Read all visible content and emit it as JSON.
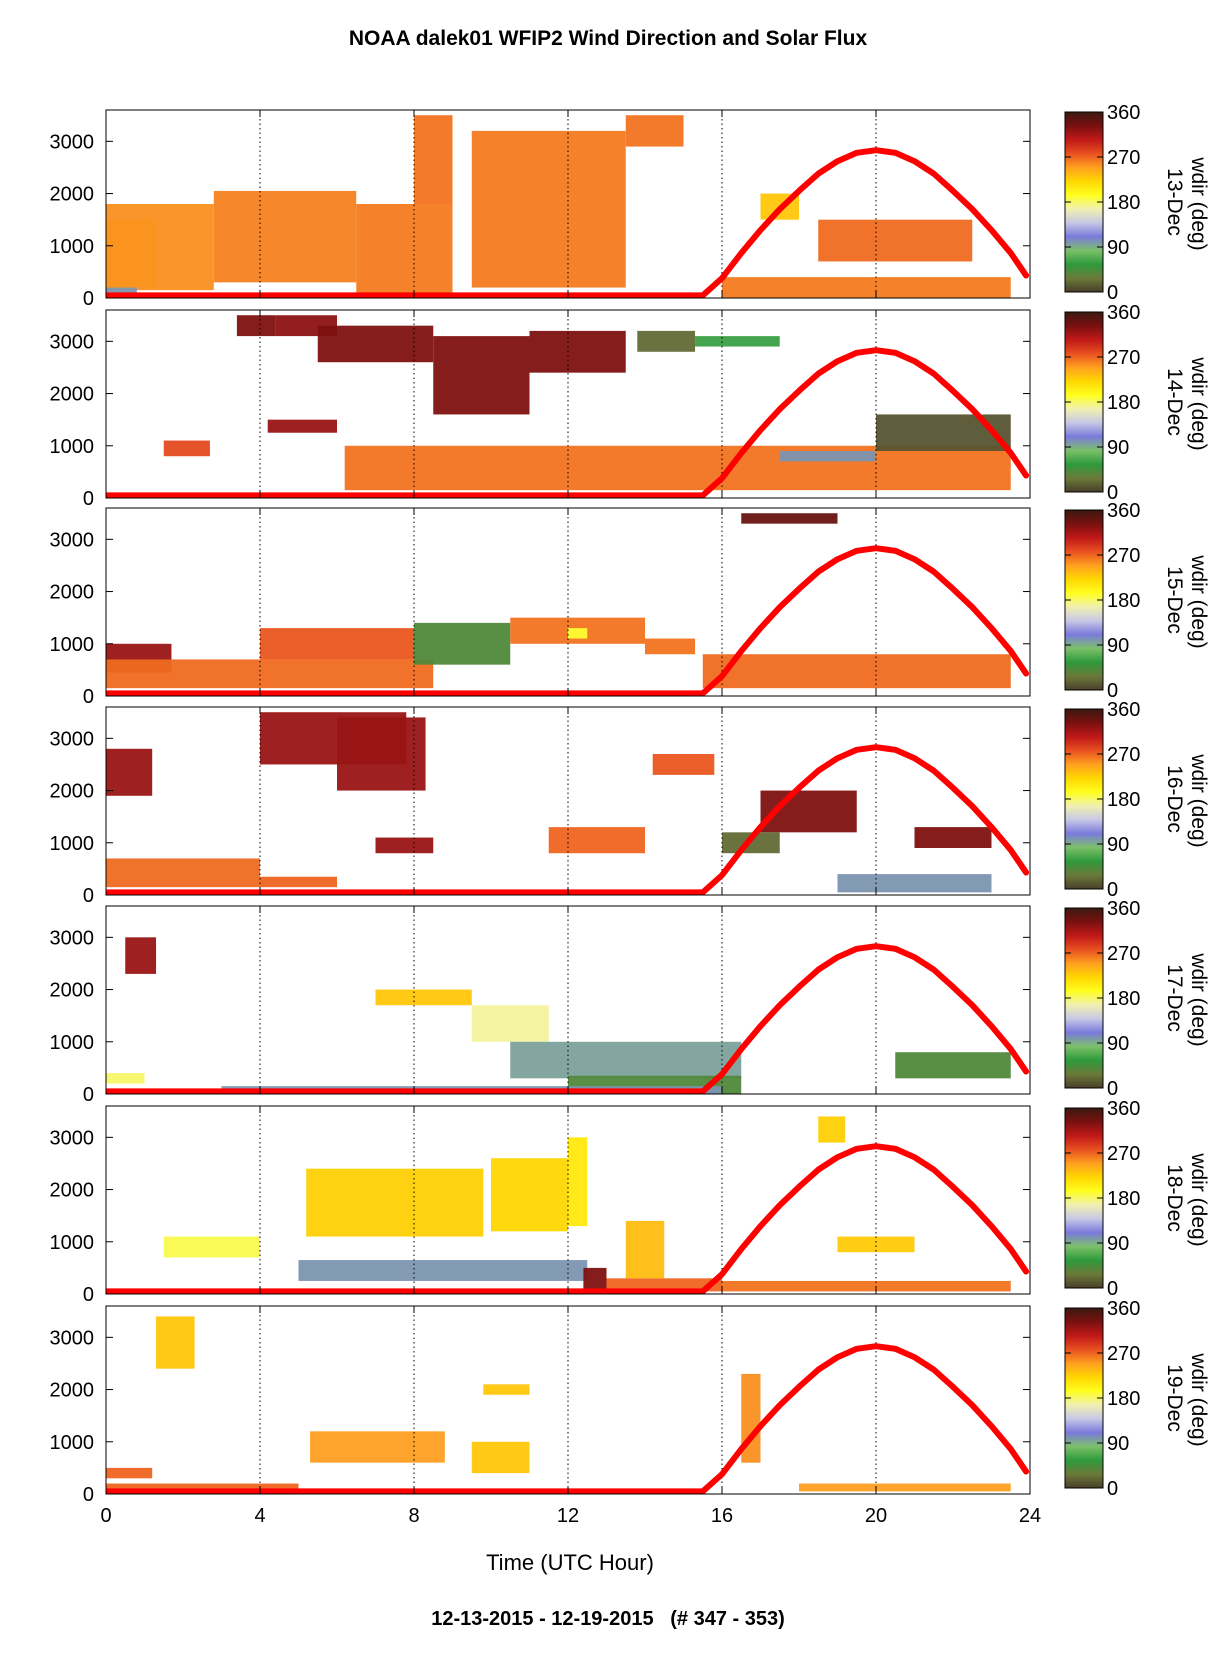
{
  "title": "NOAA dalek01 WFIP2 Wind Direction and Solar Flux",
  "footer": "12-13-2015 - 12-19-2015   (# 347 - 353)",
  "chart_data": {
    "type": "heatmap",
    "xlabel": "Time (UTC Hour)",
    "xlim": [
      0,
      24
    ],
    "x_ticks": [
      "0",
      "4",
      "8",
      "12",
      "16",
      "20",
      "24"
    ],
    "x_tick_values": [
      0,
      4,
      8,
      12,
      16,
      20,
      24
    ],
    "ylim": [
      0,
      3600
    ],
    "y_ticks": [
      "0",
      "1000",
      "2000",
      "3000"
    ],
    "y_tick_values": [
      0,
      1000,
      2000,
      3000
    ],
    "vertical_gridlines": "dotted at 4, 8, 12, 16, 20",
    "colorbar": {
      "label": "wdir (deg)",
      "ticks": [
        "0",
        "90",
        "180",
        "270",
        "360"
      ],
      "tick_values": [
        0,
        90,
        180,
        270,
        360
      ],
      "colors": [
        "#4a3f2a",
        "#6b7a3a",
        "#2e9a3c",
        "#7dc06a",
        "#7a7adc",
        "#c8c8e6",
        "#f0f0b0",
        "#ffff20",
        "#ffd700",
        "#ffa020",
        "#e85020",
        "#c01818",
        "#7a1010",
        "#3a1a10"
      ]
    },
    "solar_flux_color": "#ff0000",
    "solar_flux": {
      "x": [
        0,
        15.5,
        16,
        16.5,
        17,
        17.5,
        18,
        18.5,
        19,
        19.5,
        20,
        20.5,
        21,
        21.5,
        22,
        22.5,
        23,
        23.5,
        23.9
      ],
      "y": [
        50,
        50,
        380,
        860,
        1300,
        1700,
        2050,
        2380,
        2620,
        2780,
        2830,
        2780,
        2620,
        2380,
        2050,
        1700,
        1300,
        860,
        430
      ]
    },
    "panels": [
      {
        "day_label": "13-Dec",
        "patches": [
          {
            "x": [
              0,
              1.3
            ],
            "y": [
              200,
              1500
            ],
            "wdir": 210
          },
          {
            "x": [
              0,
              2.8
            ],
            "y": [
              150,
              1800
            ],
            "wdir": 255
          },
          {
            "x": [
              2.8,
              6.5
            ],
            "y": [
              300,
              2050
            ],
            "wdir": 260
          },
          {
            "x": [
              6.5,
              9.0
            ],
            "y": [
              100,
              1800
            ],
            "wdir": 262
          },
          {
            "x": [
              8.0,
              9.0
            ],
            "y": [
              1800,
              3500
            ],
            "wdir": 265
          },
          {
            "x": [
              9.5,
              13.5
            ],
            "y": [
              200,
              3200
            ],
            "wdir": 262
          },
          {
            "x": [
              13.5,
              15.0
            ],
            "y": [
              2900,
              3500
            ],
            "wdir": 265
          },
          {
            "x": [
              17.0,
              18.0
            ],
            "y": [
              1500,
              2000
            ],
            "wdir": 230
          },
          {
            "x": [
              18.5,
              22.5
            ],
            "y": [
              700,
              1500
            ],
            "wdir": 268
          },
          {
            "x": [
              16.0,
              23.5
            ],
            "y": [
              0,
              400
            ],
            "wdir": 262
          },
          {
            "x": [
              0,
              0.8
            ],
            "y": [
              0,
              200
            ],
            "wdir": 100
          }
        ]
      },
      {
        "day_label": "14-Dec",
        "patches": [
          {
            "x": [
              3.4,
              4.4
            ],
            "y": [
              3100,
              3500
            ],
            "wdir": 330
          },
          {
            "x": [
              4.4,
              6.0
            ],
            "y": [
              3100,
              3500
            ],
            "wdir": 325
          },
          {
            "x": [
              5.5,
              8.5
            ],
            "y": [
              2600,
              3300
            ],
            "wdir": 330
          },
          {
            "x": [
              8.5,
              11.0
            ],
            "y": [
              1600,
              3100
            ],
            "wdir": 330
          },
          {
            "x": [
              11.0,
              13.5
            ],
            "y": [
              2400,
              3200
            ],
            "wdir": 330
          },
          {
            "x": [
              13.8,
              15.3
            ],
            "y": [
              2800,
              3200
            ],
            "wdir": 20
          },
          {
            "x": [
              15.3,
              17.5
            ],
            "y": [
              2900,
              3100
            ],
            "wdir": 60
          },
          {
            "x": [
              4.2,
              6.0
            ],
            "y": [
              1250,
              1500
            ],
            "wdir": 320
          },
          {
            "x": [
              1.5,
              2.7
            ],
            "y": [
              800,
              1100
            ],
            "wdir": 280
          },
          {
            "x": [
              6.2,
              23.5
            ],
            "y": [
              150,
              1000
            ],
            "wdir": 265
          },
          {
            "x": [
              20.0,
              23.5
            ],
            "y": [
              900,
              1600
            ],
            "wdir": 10
          },
          {
            "x": [
              17.5,
              20.0
            ],
            "y": [
              700,
              900
            ],
            "wdir": 100
          }
        ]
      },
      {
        "day_label": "15-Dec",
        "patches": [
          {
            "x": [
              0,
              1.7
            ],
            "y": [
              450,
              1000
            ],
            "wdir": 320
          },
          {
            "x": [
              0,
              8.5
            ],
            "y": [
              150,
              700
            ],
            "wdir": 268
          },
          {
            "x": [
              4.0,
              8.0
            ],
            "y": [
              700,
              1300
            ],
            "wdir": 275
          },
          {
            "x": [
              8.0,
              10.5
            ],
            "y": [
              600,
              1400
            ],
            "wdir": 40
          },
          {
            "x": [
              10.5,
              14.0
            ],
            "y": [
              1000,
              1500
            ],
            "wdir": 265
          },
          {
            "x": [
              12.0,
              12.5
            ],
            "y": [
              1100,
              1300
            ],
            "wdir": 190
          },
          {
            "x": [
              14.0,
              15.3
            ],
            "y": [
              800,
              1100
            ],
            "wdir": 265
          },
          {
            "x": [
              15.5,
              23.5
            ],
            "y": [
              150,
              800
            ],
            "wdir": 268
          },
          {
            "x": [
              16.5,
              19.0
            ],
            "y": [
              3300,
              3500
            ],
            "wdir": 340
          }
        ]
      },
      {
        "day_label": "16-Dec",
        "patches": [
          {
            "x": [
              0,
              1.2
            ],
            "y": [
              1900,
              2800
            ],
            "wdir": 320
          },
          {
            "x": [
              4.0,
              7.8
            ],
            "y": [
              2500,
              3500
            ],
            "wdir": 320
          },
          {
            "x": [
              6.0,
              8.3
            ],
            "y": [
              2000,
              3400
            ],
            "wdir": 320
          },
          {
            "x": [
              0,
              4.0
            ],
            "y": [
              150,
              700
            ],
            "wdir": 268
          },
          {
            "x": [
              4.0,
              6.0
            ],
            "y": [
              150,
              350
            ],
            "wdir": 270
          },
          {
            "x": [
              7.0,
              8.5
            ],
            "y": [
              800,
              1100
            ],
            "wdir": 320
          },
          {
            "x": [
              11.5,
              14.0
            ],
            "y": [
              800,
              1300
            ],
            "wdir": 270
          },
          {
            "x": [
              14.2,
              15.8
            ],
            "y": [
              2300,
              2700
            ],
            "wdir": 275
          },
          {
            "x": [
              17.0,
              19.5
            ],
            "y": [
              1200,
              2000
            ],
            "wdir": 330
          },
          {
            "x": [
              16.0,
              17.5
            ],
            "y": [
              800,
              1200
            ],
            "wdir": 20
          },
          {
            "x": [
              21.0,
              23.0
            ],
            "y": [
              900,
              1300
            ],
            "wdir": 330
          },
          {
            "x": [
              19.0,
              23.0
            ],
            "y": [
              50,
              400
            ],
            "wdir": 100
          }
        ]
      },
      {
        "day_label": "17-Dec",
        "patches": [
          {
            "x": [
              0.5,
              1.3
            ],
            "y": [
              2300,
              3000
            ],
            "wdir": 320
          },
          {
            "x": [
              7.0,
              9.5
            ],
            "y": [
              1700,
              2000
            ],
            "wdir": 230
          },
          {
            "x": [
              9.5,
              11.5
            ],
            "y": [
              1000,
              1700
            ],
            "wdir": 170
          },
          {
            "x": [
              10.5,
              16.5
            ],
            "y": [
              300,
              1000
            ],
            "wdir": 95
          },
          {
            "x": [
              12.0,
              16.5
            ],
            "y": [
              0,
              350
            ],
            "wdir": 40
          },
          {
            "x": [
              3.0,
              16.0
            ],
            "y": [
              0,
              150
            ],
            "wdir": 100
          },
          {
            "x": [
              20.5,
              23.5
            ],
            "y": [
              300,
              800
            ],
            "wdir": 40
          },
          {
            "x": [
              0,
              1.0
            ],
            "y": [
              200,
              400
            ],
            "wdir": 180
          }
        ]
      },
      {
        "day_label": "18-Dec",
        "patches": [
          {
            "x": [
              5.2,
              9.8
            ],
            "y": [
              1100,
              2400
            ],
            "wdir": 225
          },
          {
            "x": [
              10.0,
              12.0
            ],
            "y": [
              1200,
              2600
            ],
            "wdir": 222
          },
          {
            "x": [
              12.0,
              12.5
            ],
            "y": [
              1300,
              3000
            ],
            "wdir": 210
          },
          {
            "x": [
              5.0,
              12.5
            ],
            "y": [
              250,
              650
            ],
            "wdir": 100
          },
          {
            "x": [
              1.5,
              4.0
            ],
            "y": [
              700,
              1100
            ],
            "wdir": 185
          },
          {
            "x": [
              12.4,
              13.0
            ],
            "y": [
              100,
              500
            ],
            "wdir": 330
          },
          {
            "x": [
              13.0,
              16.0
            ],
            "y": [
              50,
              300
            ],
            "wdir": 270
          },
          {
            "x": [
              13.5,
              14.5
            ],
            "y": [
              300,
              1400
            ],
            "wdir": 235
          },
          {
            "x": [
              18.5,
              19.2
            ],
            "y": [
              2900,
              3400
            ],
            "wdir": 225
          },
          {
            "x": [
              19.0,
              21.0
            ],
            "y": [
              800,
              1100
            ],
            "wdir": 228
          },
          {
            "x": [
              16.0,
              23.5
            ],
            "y": [
              50,
              250
            ],
            "wdir": 265
          }
        ]
      },
      {
        "day_label": "19-Dec",
        "patches": [
          {
            "x": [
              1.3,
              2.3
            ],
            "y": [
              2400,
              3400
            ],
            "wdir": 230
          },
          {
            "x": [
              5.3,
              8.8
            ],
            "y": [
              600,
              1200
            ],
            "wdir": 250
          },
          {
            "x": [
              9.5,
              11.0
            ],
            "y": [
              400,
              1000
            ],
            "wdir": 230
          },
          {
            "x": [
              9.8,
              11.0
            ],
            "y": [
              1900,
              2100
            ],
            "wdir": 230
          },
          {
            "x": [
              0,
              1.2
            ],
            "y": [
              300,
              500
            ],
            "wdir": 270
          },
          {
            "x": [
              0,
              5.0
            ],
            "y": [
              50,
              200
            ],
            "wdir": 270
          },
          {
            "x": [
              16.5,
              17.0
            ],
            "y": [
              600,
              2300
            ],
            "wdir": 255
          },
          {
            "x": [
              18.0,
              23.5
            ],
            "y": [
              50,
              200
            ],
            "wdir": 250
          }
        ]
      }
    ]
  }
}
